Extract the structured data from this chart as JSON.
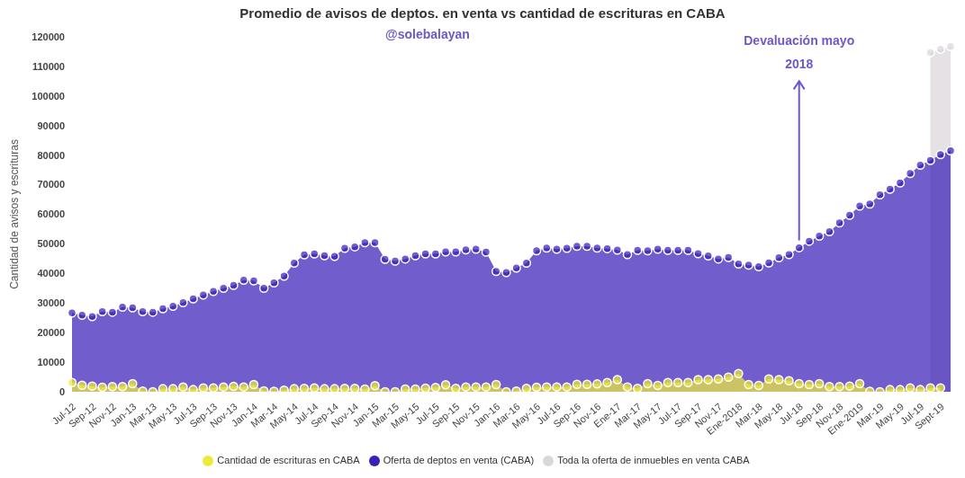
{
  "chart_data": {
    "type": "area",
    "title": "Promedio de avisos de deptos. en venta vs cantidad de escrituras en CABA",
    "subtitle": "@solebalayan",
    "ylabel": "Cantidad de avisos y escrituras",
    "categories": [
      "Jul-12",
      null,
      "Sep-12",
      null,
      "Nov-12",
      null,
      "Jan-13",
      null,
      "Mar-13",
      null,
      "May-13",
      null,
      "Jul-13",
      null,
      "Sep-13",
      null,
      "Nov-13",
      null,
      "Jan-14",
      null,
      "Mar-14",
      null,
      "May-14",
      null,
      "Jul-14",
      null,
      "Sep-14",
      null,
      "Nov-14",
      null,
      "Jan-15",
      null,
      "Mar-15",
      null,
      "May-15",
      null,
      "Jul-15",
      null,
      "Sep-15",
      null,
      "Nov-15",
      null,
      "Jan-16",
      null,
      "Mar-16",
      null,
      "May-16",
      null,
      "Jul-16",
      null,
      "Sep-16",
      null,
      "Nov-16",
      null,
      "Ene-17",
      null,
      "Mar-17",
      null,
      "May-17",
      null,
      "Jul-17",
      null,
      "Sep-17",
      null,
      "Nov-17",
      null,
      "Ene-2018",
      null,
      "Mar-18",
      null,
      "May-18",
      null,
      "Jul-18",
      null,
      "Sep-18",
      null,
      "Nov-18",
      null,
      "Ene-2019",
      null,
      "Mar-19",
      null,
      "May-19",
      null,
      "Jul-19",
      null,
      "Sept-19",
      null
    ],
    "series": [
      {
        "name": "Toda la oferta de inmuebles en venta CABA",
        "color": "#dcd6da",
        "values": [
          null,
          null,
          null,
          null,
          null,
          null,
          null,
          null,
          null,
          null,
          null,
          null,
          null,
          null,
          null,
          null,
          null,
          null,
          null,
          null,
          null,
          null,
          null,
          null,
          null,
          null,
          null,
          null,
          null,
          null,
          null,
          null,
          null,
          null,
          null,
          null,
          null,
          null,
          null,
          null,
          null,
          null,
          null,
          null,
          null,
          null,
          null,
          null,
          null,
          null,
          null,
          null,
          null,
          null,
          null,
          null,
          null,
          null,
          null,
          null,
          null,
          null,
          null,
          null,
          null,
          null,
          null,
          null,
          null,
          null,
          null,
          null,
          null,
          null,
          null,
          null,
          null,
          null,
          null,
          null,
          null,
          null,
          null,
          null,
          null,
          114700,
          115800,
          116700
        ]
      },
      {
        "name": "Oferta de deptos en venta (CABA)",
        "color": "#3a1fb8",
        "values": [
          26600,
          25900,
          25400,
          27100,
          26900,
          28600,
          28400,
          27100,
          26900,
          28100,
          28900,
          30100,
          31400,
          32700,
          33900,
          35000,
          36000,
          37700,
          37500,
          35000,
          36800,
          39100,
          43500,
          46300,
          46600,
          46000,
          45800,
          48500,
          49000,
          50400,
          50400,
          44800,
          44200,
          44900,
          46000,
          46600,
          46600,
          47300,
          47300,
          48000,
          48200,
          47200,
          40700,
          40300,
          41800,
          43500,
          47700,
          48600,
          48200,
          48500,
          49200,
          49200,
          48600,
          48400,
          47900,
          46400,
          47800,
          47700,
          48200,
          47800,
          47800,
          47800,
          46700,
          45900,
          44900,
          45400,
          43200,
          42800,
          42300,
          43600,
          45300,
          46400,
          48700,
          50900,
          52600,
          54100,
          57100,
          59700,
          62800,
          63500,
          66600,
          68500,
          70600,
          73800,
          76600,
          78200,
          80200,
          81500
        ]
      },
      {
        "name": "Cantidad de escrituras en CABA",
        "color": "#eeea3c",
        "values": [
          3100,
          2200,
          1900,
          1500,
          1700,
          1700,
          2700,
          200,
          0,
          1000,
          1000,
          1600,
          700,
          1300,
          1300,
          1600,
          1800,
          1600,
          2400,
          300,
          100,
          500,
          1000,
          1100,
          1300,
          1000,
          1000,
          1100,
          1100,
          900,
          2000,
          0,
          0,
          900,
          900,
          1200,
          1400,
          2300,
          1100,
          1600,
          1600,
          1600,
          2400,
          0,
          200,
          1100,
          1500,
          1600,
          1600,
          1600,
          2500,
          2500,
          2600,
          3100,
          4100,
          1600,
          1100,
          2700,
          2100,
          3100,
          3100,
          3100,
          4100,
          4100,
          4300,
          4900,
          6100,
          2400,
          2100,
          4300,
          4100,
          3700,
          2700,
          2400,
          2700,
          1700,
          1700,
          1900,
          2700,
          100,
          0,
          700,
          700,
          1300,
          700,
          1300,
          1300,
          null
        ]
      }
    ],
    "ylim": [
      0,
      120000
    ],
    "yticks": [
      0,
      10000,
      20000,
      30000,
      40000,
      50000,
      60000,
      70000,
      80000,
      90000,
      100000,
      110000,
      120000
    ],
    "grid": false,
    "legend": "bottom",
    "marker": "circle",
    "annotations": [
      {
        "text": "Devaluación mayo 2018",
        "x": "Jul-18",
        "y": 48700
      }
    ]
  }
}
